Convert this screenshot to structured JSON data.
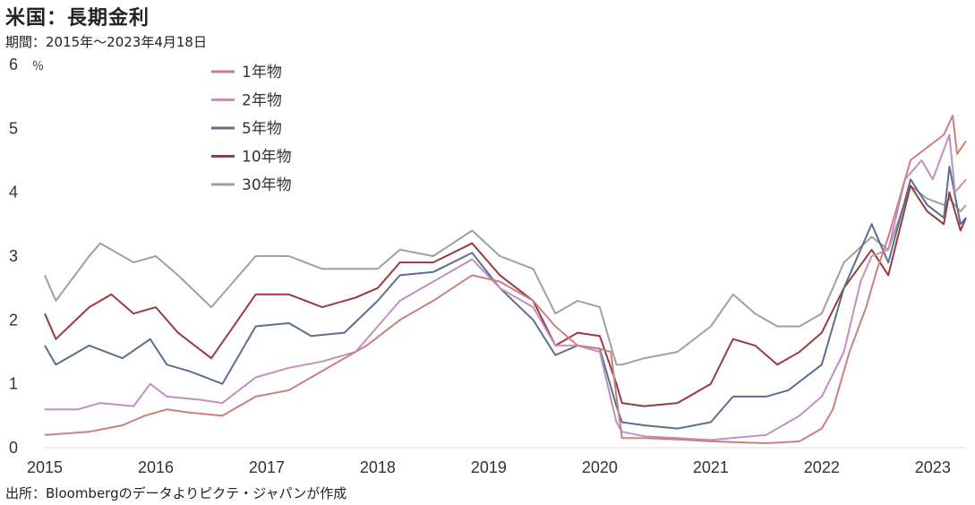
{
  "header": {
    "title": "米国：長期金利",
    "subtitle": "期間：2015年～2023年4月18日"
  },
  "footer": {
    "source": "出所：Bloombergのデータよりピクテ・ジャパンが作成"
  },
  "chart_data": {
    "type": "line",
    "yunit": "％",
    "ylim": [
      0,
      6
    ],
    "yticks": [
      "0",
      "1",
      "2",
      "3",
      "4",
      "5",
      "6"
    ],
    "xlim": [
      2015.0,
      2023.3
    ],
    "xticks": [
      {
        "label": "2015",
        "value": 2015
      },
      {
        "label": "2016",
        "value": 2016
      },
      {
        "label": "2017",
        "value": 2017
      },
      {
        "label": "2018",
        "value": 2018
      },
      {
        "label": "2019",
        "value": 2019
      },
      {
        "label": "2020",
        "value": 2020
      },
      {
        "label": "2021",
        "value": 2021
      },
      {
        "label": "2022",
        "value": 2022
      },
      {
        "label": "2023",
        "value": 2023
      }
    ],
    "legend_position": "top-left",
    "series": [
      {
        "name": "1年物",
        "color": "#cc7f80",
        "points": [
          [
            2015.0,
            0.2
          ],
          [
            2015.4,
            0.25
          ],
          [
            2015.7,
            0.35
          ],
          [
            2015.9,
            0.5
          ],
          [
            2016.1,
            0.6
          ],
          [
            2016.3,
            0.55
          ],
          [
            2016.6,
            0.5
          ],
          [
            2016.9,
            0.8
          ],
          [
            2017.2,
            0.9
          ],
          [
            2017.5,
            1.2
          ],
          [
            2017.9,
            1.6
          ],
          [
            2018.2,
            2.0
          ],
          [
            2018.5,
            2.3
          ],
          [
            2018.85,
            2.7
          ],
          [
            2019.1,
            2.6
          ],
          [
            2019.4,
            2.3
          ],
          [
            2019.6,
            1.9
          ],
          [
            2019.8,
            1.6
          ],
          [
            2020.0,
            1.55
          ],
          [
            2020.1,
            1.5
          ],
          [
            2020.15,
            0.8
          ],
          [
            2020.2,
            0.15
          ],
          [
            2020.4,
            0.15
          ],
          [
            2020.7,
            0.13
          ],
          [
            2021.0,
            0.1
          ],
          [
            2021.5,
            0.07
          ],
          [
            2021.8,
            0.1
          ],
          [
            2022.0,
            0.3
          ],
          [
            2022.1,
            0.6
          ],
          [
            2022.25,
            1.5
          ],
          [
            2022.4,
            2.2
          ],
          [
            2022.5,
            2.8
          ],
          [
            2022.6,
            3.3
          ],
          [
            2022.7,
            3.9
          ],
          [
            2022.8,
            4.5
          ],
          [
            2022.95,
            4.7
          ],
          [
            2023.1,
            4.9
          ],
          [
            2023.18,
            5.2
          ],
          [
            2023.22,
            4.6
          ],
          [
            2023.3,
            4.8
          ]
        ]
      },
      {
        "name": "2年物",
        "color": "#c090c0",
        "points": [
          [
            2015.0,
            0.6
          ],
          [
            2015.3,
            0.6
          ],
          [
            2015.5,
            0.7
          ],
          [
            2015.8,
            0.65
          ],
          [
            2015.95,
            1.0
          ],
          [
            2016.1,
            0.8
          ],
          [
            2016.4,
            0.75
          ],
          [
            2016.6,
            0.7
          ],
          [
            2016.9,
            1.1
          ],
          [
            2017.2,
            1.25
          ],
          [
            2017.5,
            1.35
          ],
          [
            2017.8,
            1.5
          ],
          [
            2018.0,
            1.9
          ],
          [
            2018.2,
            2.3
          ],
          [
            2018.5,
            2.6
          ],
          [
            2018.85,
            2.95
          ],
          [
            2019.1,
            2.5
          ],
          [
            2019.4,
            2.2
          ],
          [
            2019.6,
            1.6
          ],
          [
            2019.8,
            1.6
          ],
          [
            2020.0,
            1.5
          ],
          [
            2020.15,
            0.4
          ],
          [
            2020.2,
            0.25
          ],
          [
            2020.4,
            0.18
          ],
          [
            2020.7,
            0.15
          ],
          [
            2021.0,
            0.12
          ],
          [
            2021.5,
            0.2
          ],
          [
            2021.8,
            0.5
          ],
          [
            2022.0,
            0.8
          ],
          [
            2022.2,
            1.5
          ],
          [
            2022.35,
            2.6
          ],
          [
            2022.45,
            3.0
          ],
          [
            2022.6,
            3.1
          ],
          [
            2022.75,
            4.2
          ],
          [
            2022.9,
            4.5
          ],
          [
            2023.0,
            4.2
          ],
          [
            2023.15,
            4.9
          ],
          [
            2023.2,
            4.0
          ],
          [
            2023.3,
            4.2
          ]
        ]
      },
      {
        "name": "5年物",
        "color": "#5b7090",
        "points": [
          [
            2015.0,
            1.6
          ],
          [
            2015.1,
            1.3
          ],
          [
            2015.4,
            1.6
          ],
          [
            2015.7,
            1.4
          ],
          [
            2015.95,
            1.7
          ],
          [
            2016.1,
            1.3
          ],
          [
            2016.3,
            1.2
          ],
          [
            2016.6,
            1.0
          ],
          [
            2016.9,
            1.9
          ],
          [
            2017.2,
            1.95
          ],
          [
            2017.4,
            1.75
          ],
          [
            2017.7,
            1.8
          ],
          [
            2018.0,
            2.3
          ],
          [
            2018.2,
            2.7
          ],
          [
            2018.5,
            2.75
          ],
          [
            2018.85,
            3.05
          ],
          [
            2019.1,
            2.5
          ],
          [
            2019.4,
            2.0
          ],
          [
            2019.6,
            1.45
          ],
          [
            2019.8,
            1.6
          ],
          [
            2020.0,
            1.55
          ],
          [
            2020.15,
            0.65
          ],
          [
            2020.2,
            0.4
          ],
          [
            2020.4,
            0.35
          ],
          [
            2020.7,
            0.3
          ],
          [
            2021.0,
            0.4
          ],
          [
            2021.2,
            0.8
          ],
          [
            2021.5,
            0.8
          ],
          [
            2021.7,
            0.9
          ],
          [
            2022.0,
            1.3
          ],
          [
            2022.2,
            2.5
          ],
          [
            2022.45,
            3.5
          ],
          [
            2022.6,
            2.9
          ],
          [
            2022.8,
            4.2
          ],
          [
            2022.95,
            3.8
          ],
          [
            2023.1,
            3.6
          ],
          [
            2023.15,
            4.4
          ],
          [
            2023.25,
            3.5
          ],
          [
            2023.3,
            3.6
          ]
        ]
      },
      {
        "name": "10年物",
        "color": "#9a3a40",
        "points": [
          [
            2015.0,
            2.1
          ],
          [
            2015.1,
            1.7
          ],
          [
            2015.4,
            2.2
          ],
          [
            2015.6,
            2.4
          ],
          [
            2015.8,
            2.1
          ],
          [
            2016.0,
            2.2
          ],
          [
            2016.2,
            1.8
          ],
          [
            2016.5,
            1.4
          ],
          [
            2016.9,
            2.4
          ],
          [
            2017.2,
            2.4
          ],
          [
            2017.5,
            2.2
          ],
          [
            2017.8,
            2.35
          ],
          [
            2018.0,
            2.5
          ],
          [
            2018.2,
            2.9
          ],
          [
            2018.5,
            2.9
          ],
          [
            2018.85,
            3.2
          ],
          [
            2019.1,
            2.7
          ],
          [
            2019.4,
            2.3
          ],
          [
            2019.6,
            1.6
          ],
          [
            2019.8,
            1.8
          ],
          [
            2020.0,
            1.75
          ],
          [
            2020.15,
            1.0
          ],
          [
            2020.2,
            0.7
          ],
          [
            2020.4,
            0.65
          ],
          [
            2020.7,
            0.7
          ],
          [
            2021.0,
            1.0
          ],
          [
            2021.2,
            1.7
          ],
          [
            2021.4,
            1.6
          ],
          [
            2021.6,
            1.3
          ],
          [
            2021.8,
            1.5
          ],
          [
            2022.0,
            1.8
          ],
          [
            2022.2,
            2.5
          ],
          [
            2022.45,
            3.1
          ],
          [
            2022.6,
            2.7
          ],
          [
            2022.8,
            4.1
          ],
          [
            2022.95,
            3.7
          ],
          [
            2023.1,
            3.5
          ],
          [
            2023.15,
            4.0
          ],
          [
            2023.25,
            3.4
          ],
          [
            2023.3,
            3.6
          ]
        ]
      },
      {
        "name": "30年物",
        "color": "#a0a0a0",
        "points": [
          [
            2015.0,
            2.7
          ],
          [
            2015.1,
            2.3
          ],
          [
            2015.4,
            3.0
          ],
          [
            2015.5,
            3.2
          ],
          [
            2015.8,
            2.9
          ],
          [
            2016.0,
            3.0
          ],
          [
            2016.2,
            2.7
          ],
          [
            2016.5,
            2.2
          ],
          [
            2016.9,
            3.0
          ],
          [
            2017.2,
            3.0
          ],
          [
            2017.5,
            2.8
          ],
          [
            2017.8,
            2.8
          ],
          [
            2018.0,
            2.8
          ],
          [
            2018.2,
            3.1
          ],
          [
            2018.5,
            3.0
          ],
          [
            2018.85,
            3.4
          ],
          [
            2019.1,
            3.0
          ],
          [
            2019.4,
            2.8
          ],
          [
            2019.6,
            2.1
          ],
          [
            2019.8,
            2.3
          ],
          [
            2020.0,
            2.2
          ],
          [
            2020.15,
            1.3
          ],
          [
            2020.2,
            1.3
          ],
          [
            2020.4,
            1.4
          ],
          [
            2020.7,
            1.5
          ],
          [
            2021.0,
            1.9
          ],
          [
            2021.2,
            2.4
          ],
          [
            2021.4,
            2.1
          ],
          [
            2021.6,
            1.9
          ],
          [
            2021.8,
            1.9
          ],
          [
            2022.0,
            2.1
          ],
          [
            2022.2,
            2.9
          ],
          [
            2022.45,
            3.3
          ],
          [
            2022.6,
            3.1
          ],
          [
            2022.8,
            4.1
          ],
          [
            2022.95,
            3.9
          ],
          [
            2023.1,
            3.8
          ],
          [
            2023.15,
            3.9
          ],
          [
            2023.25,
            3.7
          ],
          [
            2023.3,
            3.8
          ]
        ]
      }
    ]
  }
}
